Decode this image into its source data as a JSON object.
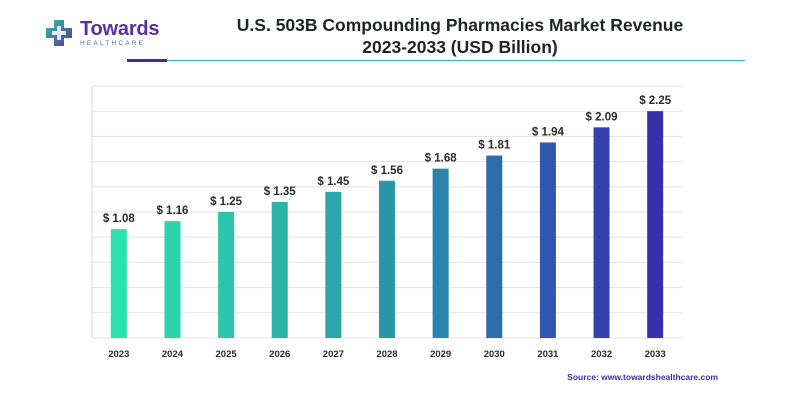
{
  "logo": {
    "name": "Towards",
    "sub": "HEALTHCARE"
  },
  "chart_data": {
    "type": "bar",
    "title": "U.S. 503B Compounding Pharmacies Market Revenue 2023-2033 (USD Billion)",
    "title_line1": "U.S. 503B Compounding Pharmacies Market Revenue",
    "title_line2": "2023-2033 (USD Billion)",
    "categories": [
      "2023",
      "2024",
      "2025",
      "2026",
      "2027",
      "2028",
      "2029",
      "2030",
      "2031",
      "2032",
      "2033"
    ],
    "values": [
      1.08,
      1.16,
      1.25,
      1.35,
      1.45,
      1.56,
      1.68,
      1.81,
      1.94,
      2.09,
      2.25
    ],
    "value_labels": [
      "$ 1.08",
      "$ 1.16",
      "$ 1.25",
      "$ 1.35",
      "$ 1.45",
      "$ 1.56",
      "$ 1.68",
      "$ 1.81",
      "$ 1.94",
      "$ 2.09",
      "$ 2.25"
    ],
    "bar_colors": [
      "#2de0b0",
      "#2bd3ad",
      "#2ac5aa",
      "#2ab3a8",
      "#2aa6a8",
      "#2a97a9",
      "#2b84ab",
      "#2d6dac",
      "#3158ae",
      "#3542ae",
      "#3a2fa8"
    ],
    "xlabel": "",
    "ylabel": "",
    "ylim": [
      0,
      2.5
    ],
    "grid": true,
    "legend": "none"
  },
  "source": "Source: www.towardshealthcare.com"
}
